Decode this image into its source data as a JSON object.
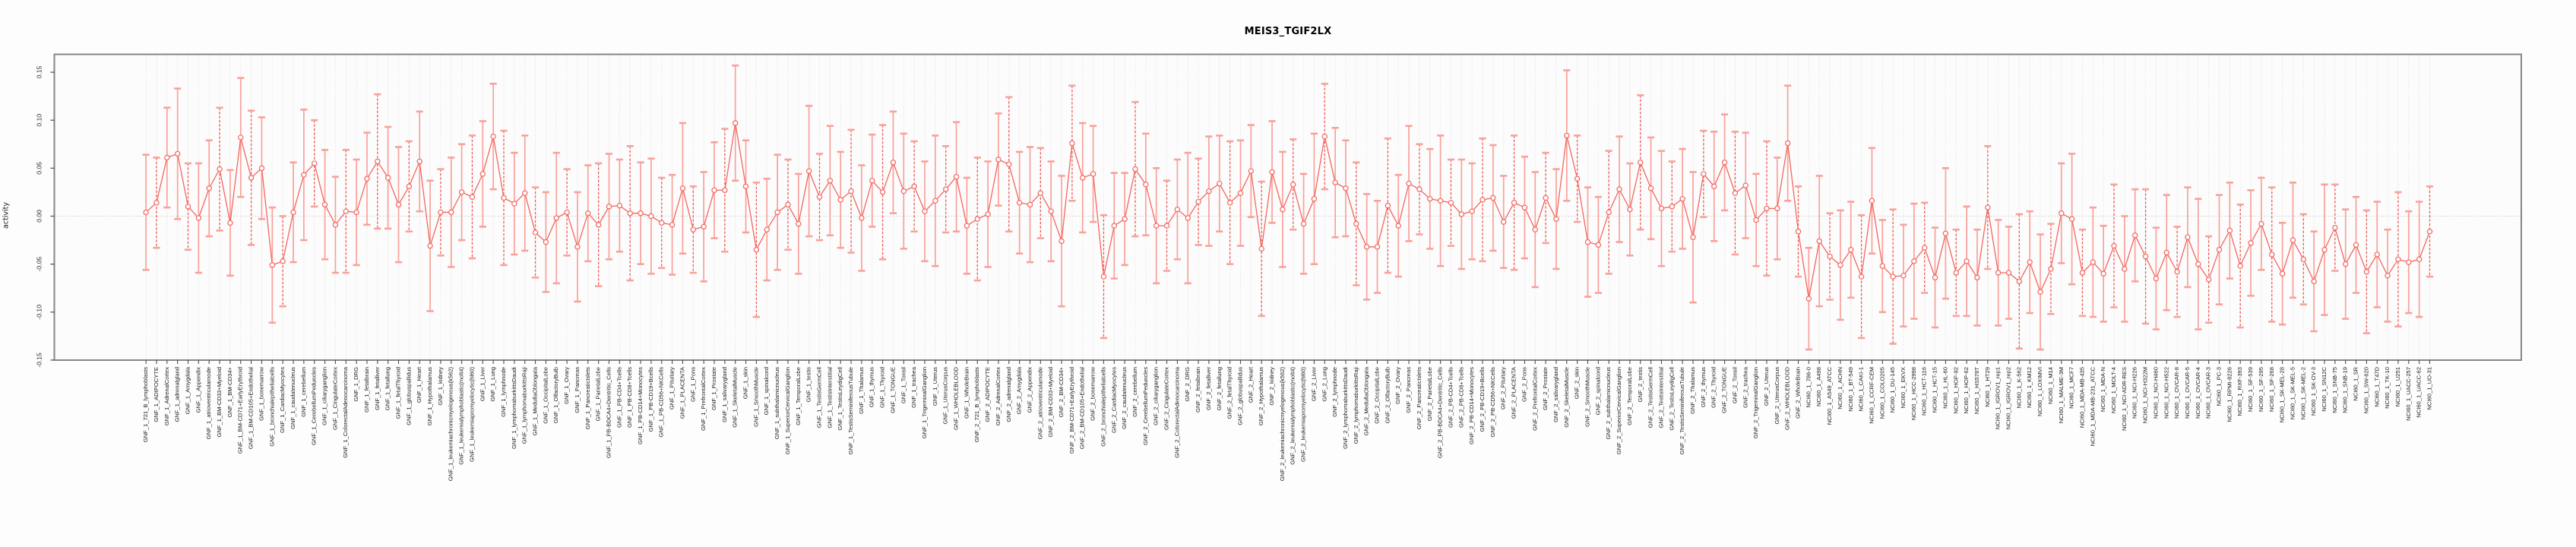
{
  "chart_data": {
    "type": "line",
    "title": "MEIS3_TGIF2LX",
    "ylabel": "activity",
    "xlabel": "",
    "ylim": [
      -0.15,
      0.15
    ],
    "yticks": [
      0.15,
      0.1,
      0.05,
      0.0,
      -0.05,
      -0.1,
      -0.15
    ],
    "grid": "vertical-dotted-per-category, dotted zero line",
    "legend": "none",
    "marker": "open-circle with error bars (caps), points connected by line",
    "categories": [
      "GNF_1_721_B_lymphoblasts",
      "GNF_1_ADIPOCYTE",
      "GNF_1_AdrenalCortex",
      "GNF_1_adrenalgland",
      "GNF_1_Amygdala",
      "GNF_1_Appendix",
      "GNF_1_atrioventricularnode",
      "GNF_1_BM-CD33+Myeloid",
      "GNF_1_BM-CD34+",
      "GNF_1_BM-CD71+EarlyErythroid",
      "GNF_1_BM-CD105+Endothelial",
      "GNF_1_bonemarrow",
      "GNF_1_bronchialepithelialcells",
      "GNF_1_CardiacMyocytes",
      "GNF_1_caudatenucleus",
      "GNF_1_cerebellum",
      "GNF_1_CerebellumPeduncles",
      "GNF_1_ciliaryganglion",
      "GNF_1_CingulateCortex",
      "GNF_1_ColorectalAdenocarcinoma",
      "GNF_1_DRG",
      "GNF_1_fetalbrain",
      "GNF_1_fetalliver",
      "GNF_1_fetallung",
      "GNF_1_fetalThyroid",
      "GNF_1_globuspallidus",
      "GNF_1_Heart",
      "GNF_1_Hypothalamus",
      "GNF_1_kidney",
      "GNF_1_leukemiachronicmyelogenous(k562)",
      "GNF_1_leukemialymphoblastic(molt4)",
      "GNF_1_leukemiapromyelocytic(hl60)",
      "GNF_1_Liver",
      "GNF_1_Lung",
      "GNF_1_lymphnode",
      "GNF_1_lymphomaburkittsDaudi",
      "GNF_1_lymphomaburkittsRaji",
      "GNF_1_MedullaOblongata",
      "GNF_1_OccipitalLobe",
      "GNF_1_OlfactoryBulb",
      "GNF_1_Ovary",
      "GNF_1_Pancreas",
      "GNF_1_PancreaticIslets",
      "GNF_1_ParietalLobe",
      "GNF_1_PB-BDCA4+Dentritic_Cells",
      "GNF_1_PB-CD4+Tcells",
      "GNF_1_PB-CD8+Tcells",
      "GNF_1_PB-CD14+Monocytes",
      "GNF_1_PB-CD19+Bcells",
      "GNF_1_PB-CD56+NKCells",
      "GNF_1_Pituitary",
      "GNF_1_PLACENTA",
      "GNF_1_Pons",
      "GNF_1_PrefrontalCortex",
      "GNF_1_Prostate",
      "GNF_1_salivarygland",
      "GNF_1_SkeletalMuscle",
      "GNF_1_skin",
      "GNF_1_SmoothMuscle",
      "GNF_1_spinalcord",
      "GNF_1_subthalamicnucleus",
      "GNF_1_SuperiorCervicalGanglion",
      "GNF_1_TemporalLobe",
      "GNF_1_testis",
      "GNF_1_TestisGermCell",
      "GNF_1_TestisInterstitial",
      "GNF_1_TestisLeydigCell",
      "GNF_1_TestisSeminiferousTubule",
      "GNF_1_Thalamus",
      "GNF_1_thymus",
      "GNF_1_Thyroid",
      "GNF_1_TONGUE",
      "GNF_1_Tonsil",
      "GNF_1_trachea",
      "GNF_1_TrigeminalGanglion",
      "GNF_1_Uterus",
      "GNF_1_UterusCorpus",
      "GNF_1_WHOLEBLOOD",
      "GNF_1_WholeBrain",
      "GNF_2_721_B_lymphoblasts",
      "GNF_2_ADIPOCYTE",
      "GNF_2_AdrenalCortex",
      "GNF_2_adrenalgland",
      "GNF_2_Amygdala",
      "GNF_2_Appendix",
      "GNF_2_atrioventricularnode",
      "GNF_2_BM-CD33+Myeloid",
      "GNF_2_BM-CD34+",
      "GNF_2_BM-CD71+EarlyErythroid",
      "GNF_2_BM-CD105+Endothelial",
      "GNF_2_bonemarrow",
      "GNF_2_bronchialepithelialcells",
      "GNF_2_CardiacMyocytes",
      "GNF_2_caudatenucleus",
      "GNF_2_cerebellum",
      "GNF_2_CerebellumPeduncles",
      "GNF_2_ciliaryganglion",
      "GNF_2_CingulateCortex",
      "GNF_2_ColorectalAdenocarcinoma",
      "GNF_2_DRG",
      "GNF_2_fetalbrain",
      "GNF_2_fetalliver",
      "GNF_2_fetallung",
      "GNF_2_fetalThyroid",
      "GNF_2_globuspallidus",
      "GNF_2_Heart",
      "GNF_2_Hypothalamus",
      "GNF_2_kidney",
      "GNF_2_leukemiachronicmyelogenous(k562)",
      "GNF_2_leukemialymphoblastic(molt4)",
      "GNF_2_leukemiapromyelocytic(hl60)",
      "GNF_2_Liver",
      "GNF_2_Lung",
      "GNF_2_lymphnode",
      "GNF_2_lymphomaburkittsDaudi",
      "GNF_2_lymphomaburkittsRaji",
      "GNF_2_MedullaOblongata",
      "GNF_2_OccipitalLobe",
      "GNF_2_OlfactoryBulb",
      "GNF_2_Ovary",
      "GNF_2_Pancreas",
      "GNF_2_PancreaticIslets",
      "GNF_2_ParietalLobe",
      "GNF_2_PB-BDCA4+Dentritic_Cells",
      "GNF_2_PB-CD4+Tcells",
      "GNF_2_PB-CD8+Tcells",
      "GNF_2_PB-CD14+Monocytes",
      "GNF_2_PB-CD19+Bcells",
      "GNF_2_PB-CD56+NKCells",
      "GNF_2_Pituitary",
      "GNF_2_PLACENTA",
      "GNF_2_Pons",
      "GNF_2_PrefrontalCortex",
      "GNF_2_Prostate",
      "GNF_2_salivarygland",
      "GNF_2_SkeletalMuscle",
      "GNF_2_skin",
      "GNF_2_SmoothMuscle",
      "GNF_2_spinalcord",
      "GNF_2_subthalamicnucleus",
      "GNF_2_SuperiorCervicalGanglion",
      "GNF_2_TemporalLobe",
      "GNF_2_testis",
      "GNF_2_TestisGermCell",
      "GNF_2_TestisInterstitial",
      "GNF_2_TestisLeydigCell",
      "GNF_2_TestisSeminiferousTubule",
      "GNF_2_Thalamus",
      "GNF_2_thymus",
      "GNF_2_Thyroid",
      "GNF_2_TONGUE",
      "GNF_2_Tonsil",
      "GNF_2_trachea",
      "GNF_2_TrigeminalGanglion",
      "GNF_2_Uterus",
      "GNF_2_UterusCorpus",
      "GNF_2_WHOLEBLOOD",
      "GNF_2_WholeBrain",
      "NCI60_1_786-0",
      "NCI60_1_A498",
      "NCI60_1_A549_ATCC",
      "NCI60_1_ACHN",
      "NCI60_1_BT-549",
      "NCI60_1_CAKI-1",
      "NCI60_1_CCRF-CEM",
      "NCI60_1_COLO205",
      "NCI60_1_DU-145",
      "NCI60_1_EKVX",
      "NCI60_1_HCC-2998",
      "NCI60_1_HCT-116",
      "NCI60_1_HCT-15",
      "NCI60_1_HL-60",
      "NCI60_1_HOP-92",
      "NCI60_1_HOP-62",
      "NCI60_1_HS578T",
      "NCI60_1_HT29",
      "NCI60_1_IGROV1_rep1",
      "NCI60_1_IGROV1_rep2",
      "NCI60_1_K-562",
      "NCI60_1_KM12",
      "NCI60_1_LOXIMVI",
      "NCI60_1_M14",
      "NCI60_1_MALME-3M",
      "NCI60_1_MCF7",
      "NCI60_1_MDA-MB-435",
      "NCI60_1_MDA-MB-231_ATCC",
      "NCI60_1_MDA-N",
      "NCI60_1_MOLT-4",
      "NCI60_1_NCI-ADR-RES",
      "NCI60_1_NCI-H226",
      "NCI60_1_NCI-H322M",
      "NCI60_1_NCI-H460",
      "NCI60_1_NCI-H522",
      "NCI60_1_OVCAR-8",
      "NCI60_1_OVCAR-5",
      "NCI60_1_OVCAR-4",
      "NCI60_1_OVCAR-3",
      "NCI60_1_PC-3",
      "NCI60_1_RPMI-8226",
      "NCI60_1_RXF-393",
      "NCI60_1_SF-539",
      "NCI60_1_SF-295",
      "NCI60_1_SF-268",
      "NCI60_1_SK-MEL-28",
      "NCI60_1_SK-MEL-5",
      "NCI60_1_SK-MEL-2",
      "NCI60_1_SK-OV-3",
      "NCI60_1_SN12C",
      "NCI60_1_SNB-75",
      "NCI60_1_SNB-19",
      "NCI60_1_SR",
      "NCI60_1_SW-620",
      "NCI60_1_T47D",
      "NCI60_1_TK-10",
      "NCI60_1_U251",
      "NCI60_1_UACC-257",
      "NCI60_1_UACC-62",
      "NCI60_1_UO-31"
    ],
    "values": [
      0.004,
      0.014,
      0.061,
      0.065,
      0.01,
      -0.002,
      0.029,
      0.049,
      -0.007,
      0.082,
      0.04,
      0.05,
      -0.051,
      -0.047,
      0.004,
      0.043,
      0.055,
      0.012,
      -0.009,
      0.005,
      0.004,
      0.039,
      0.057,
      0.04,
      0.012,
      0.031,
      0.057,
      -0.031,
      0.004,
      0.004,
      0.025,
      0.02,
      0.044,
      0.083,
      0.019,
      0.013,
      0.024,
      -0.017,
      -0.027,
      -0.002,
      0.004,
      -0.032,
      0.003,
      -0.009,
      0.01,
      0.011,
      0.003,
      0.003,
      0.0,
      -0.007,
      -0.009,
      0.029,
      -0.014,
      -0.011,
      0.027,
      0.027,
      0.097,
      0.031,
      -0.035,
      -0.014,
      0.004,
      0.012,
      -0.008,
      0.047,
      0.02,
      0.037,
      0.017,
      0.026,
      -0.002,
      0.037,
      0.025,
      0.056,
      0.026,
      0.031,
      0.005,
      0.016,
      0.028,
      0.041,
      -0.01,
      -0.003,
      0.002,
      0.059,
      0.054,
      0.014,
      0.012,
      0.024,
      0.005,
      -0.026,
      0.076,
      0.04,
      0.044,
      -0.063,
      -0.01,
      -0.003,
      0.049,
      0.033,
      -0.01,
      -0.01,
      0.007,
      -0.002,
      0.015,
      0.026,
      0.034,
      0.014,
      0.024,
      0.047,
      -0.034,
      0.046,
      0.007,
      0.033,
      -0.008,
      0.018,
      0.083,
      0.035,
      0.029,
      -0.008,
      -0.032,
      -0.032,
      0.011,
      -0.01,
      0.034,
      0.028,
      0.018,
      0.016,
      0.014,
      0.002,
      0.005,
      0.017,
      0.019,
      -0.006,
      0.014,
      0.009,
      -0.014,
      0.019,
      -0.003,
      0.084,
      0.039,
      -0.027,
      -0.03,
      0.004,
      0.028,
      0.007,
      0.056,
      0.029,
      0.008,
      0.01,
      0.018,
      -0.022,
      0.044,
      0.031,
      0.056,
      0.024,
      0.032,
      -0.004,
      0.008,
      0.008,
      0.076,
      -0.016,
      -0.086,
      -0.026,
      -0.042,
      -0.051,
      -0.035,
      -0.063,
      0.016,
      -0.052,
      -0.063,
      -0.062,
      -0.047,
      -0.033,
      -0.064,
      -0.018,
      -0.059,
      -0.047,
      -0.064,
      0.009,
      -0.059,
      -0.059,
      -0.068,
      -0.048,
      -0.079,
      -0.055,
      0.003,
      -0.003,
      -0.059,
      -0.048,
      -0.06,
      -0.031,
      -0.055,
      -0.02,
      -0.042,
      -0.065,
      -0.038,
      -0.058,
      -0.022,
      -0.05,
      -0.066,
      -0.035,
      -0.015,
      -0.052,
      -0.028,
      -0.008,
      -0.04,
      -0.06,
      -0.025,
      -0.045,
      -0.068,
      -0.035,
      -0.012,
      -0.05,
      -0.03,
      -0.058,
      -0.04,
      -0.062,
      -0.045,
      -0.048,
      -0.045,
      -0.016
    ],
    "err": [
      0.06,
      0.047,
      0.052,
      0.068,
      0.045,
      0.057,
      0.05,
      0.064,
      0.055,
      0.062,
      0.07,
      0.053,
      0.06,
      0.047,
      0.052,
      0.068,
      0.045,
      0.057,
      0.05,
      0.064,
      0.055,
      0.048,
      0.07,
      0.053,
      0.06,
      0.047,
      0.052,
      0.068,
      0.045,
      0.057,
      0.05,
      0.064,
      0.055,
      0.055,
      0.07,
      0.053,
      0.06,
      0.047,
      0.052,
      0.068,
      0.045,
      0.057,
      0.05,
      0.064,
      0.055,
      0.048,
      0.07,
      0.053,
      0.06,
      0.047,
      0.052,
      0.068,
      0.045,
      0.057,
      0.05,
      0.064,
      0.06,
      0.048,
      0.07,
      0.053,
      0.06,
      0.047,
      0.052,
      0.068,
      0.045,
      0.057,
      0.05,
      0.064,
      0.055,
      0.048,
      0.07,
      0.053,
      0.06,
      0.047,
      0.052,
      0.068,
      0.045,
      0.057,
      0.05,
      0.064,
      0.055,
      0.048,
      0.07,
      0.053,
      0.06,
      0.047,
      0.052,
      0.068,
      0.06,
      0.057,
      0.05,
      0.064,
      0.055,
      0.048,
      0.07,
      0.053,
      0.06,
      0.047,
      0.052,
      0.068,
      0.045,
      0.057,
      0.05,
      0.064,
      0.055,
      0.048,
      0.07,
      0.053,
      0.06,
      0.047,
      0.052,
      0.068,
      0.055,
      0.057,
      0.05,
      0.064,
      0.055,
      0.048,
      0.07,
      0.053,
      0.06,
      0.047,
      0.052,
      0.068,
      0.045,
      0.057,
      0.05,
      0.064,
      0.055,
      0.048,
      0.07,
      0.053,
      0.06,
      0.047,
      0.052,
      0.068,
      0.045,
      0.057,
      0.05,
      0.064,
      0.055,
      0.048,
      0.07,
      0.053,
      0.06,
      0.047,
      0.052,
      0.068,
      0.045,
      0.057,
      0.05,
      0.064,
      0.055,
      0.048,
      0.07,
      0.053,
      0.06,
      0.047,
      0.053,
      0.068,
      0.045,
      0.057,
      0.05,
      0.064,
      0.055,
      0.048,
      0.07,
      0.053,
      0.06,
      0.047,
      0.052,
      0.068,
      0.045,
      0.057,
      0.05,
      0.064,
      0.055,
      0.048,
      0.07,
      0.053,
      0.06,
      0.047,
      0.052,
      0.068,
      0.045,
      0.057,
      0.05,
      0.064,
      0.055,
      0.048,
      0.07,
      0.053,
      0.06,
      0.047,
      0.052,
      0.068,
      0.045,
      0.057,
      0.05,
      0.064,
      0.055,
      0.048,
      0.07,
      0.053,
      0.06,
      0.047,
      0.052,
      0.068,
      0.045,
      0.057,
      0.05,
      0.064,
      0.055,
      0.048,
      0.07,
      0.053,
      0.06,
      0.047
    ]
  },
  "colors": {
    "point": "#f4665e",
    "line": "#f4665e",
    "bar": "#f9a19a",
    "bar_dashed": "#ee5a52",
    "grid": "#dcdcdc",
    "zero_line": "#c9c9c9",
    "box": "#858585",
    "tick": "#4c4c4c",
    "tick_text": "#2b2b2b",
    "title_text": "#000000"
  }
}
